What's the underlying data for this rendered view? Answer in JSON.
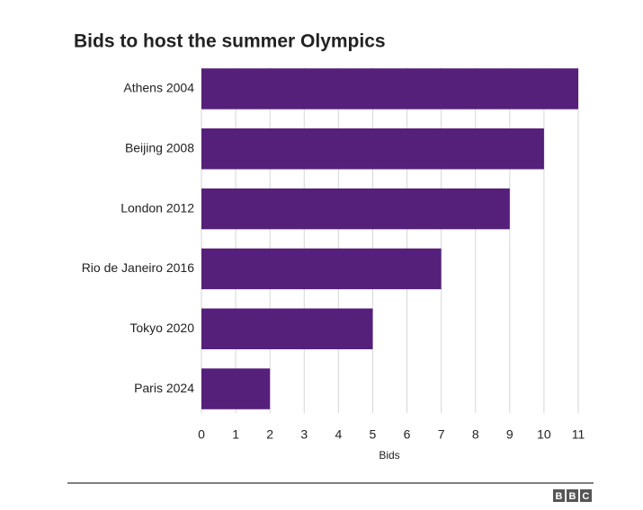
{
  "chart_data": {
    "type": "hbar",
    "title": "Bids to host the summer Olympics",
    "categories": [
      "Athens 2004",
      "Beijing 2008",
      "London 2012",
      "Rio de Janeiro 2016",
      "Tokyo 2020",
      "Paris 2024"
    ],
    "values": [
      11,
      10,
      9,
      7,
      5,
      2
    ],
    "color": "#55207a",
    "xlim": [
      0,
      11
    ],
    "xticks": [
      0,
      1,
      2,
      3,
      4,
      5,
      6,
      7,
      8,
      9,
      10,
      11
    ],
    "xlabel": "Bids",
    "grid": true
  },
  "footer": {
    "logo": "BBC"
  }
}
